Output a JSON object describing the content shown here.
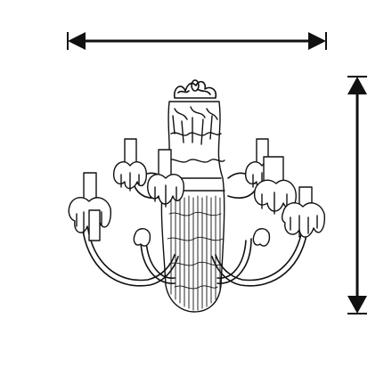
{
  "image": {
    "subject": "chandelier-with-candles",
    "colors": {
      "background": "#ffffff",
      "ink": "#111111"
    }
  },
  "dimension_arrows": {
    "width_arrow": {
      "orientation": "horizontal",
      "icon": "double-arrow-icon"
    },
    "height_arrow": {
      "orientation": "vertical",
      "icon": "double-arrow-icon"
    }
  }
}
